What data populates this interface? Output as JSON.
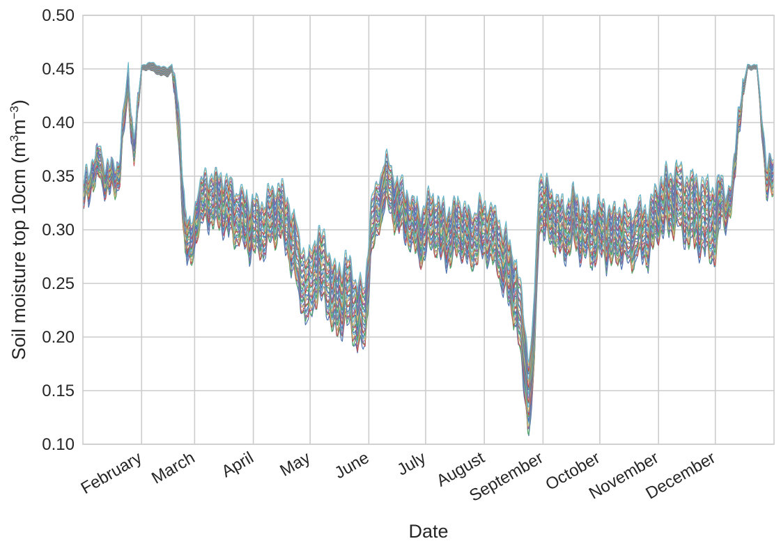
{
  "chart_data": {
    "type": "line",
    "xlabel": "Date",
    "ylabel_main": "Soil moisture top 10cm (m",
    "ylabel_sup1": "3",
    "ylabel_mid": "m",
    "ylabel_sup2": "−3",
    "ylabel_end": ")",
    "ylim": [
      0.1,
      0.5
    ],
    "xlim_day_of_year": [
      1,
      366
    ],
    "yticks": [
      0.1,
      0.15,
      0.2,
      0.25,
      0.3,
      0.35,
      0.4,
      0.45,
      0.5
    ],
    "ytick_labels": [
      "0.10",
      "0.15",
      "0.20",
      "0.25",
      "0.30",
      "0.35",
      "0.40",
      "0.45",
      "0.50"
    ],
    "xticks_day_of_year": [
      32,
      60,
      91,
      121,
      152,
      182,
      213,
      244,
      274,
      305,
      335
    ],
    "xtick_labels": [
      "February",
      "March",
      "April",
      "May",
      "June",
      "July",
      "August",
      "September",
      "October",
      "November",
      "December"
    ],
    "grid": true,
    "legend": "none",
    "series_colors": [
      "#4C72B0",
      "#55A868",
      "#C44E52",
      "#8172B2",
      "#CCB974",
      "#64B5CD"
    ],
    "ensemble": {
      "members": 30,
      "note_values": "ensemble envelope read from chart; x = day of year",
      "x": [
        1,
        6,
        10,
        14,
        20,
        25,
        28,
        32,
        38,
        42,
        46,
        48,
        50,
        52,
        55,
        58,
        62,
        68,
        75,
        82,
        88,
        95,
        100,
        105,
        110,
        115,
        120,
        125,
        130,
        135,
        140,
        145,
        150,
        153,
        157,
        160,
        165,
        170,
        175,
        180,
        185,
        190,
        195,
        200,
        205,
        210,
        215,
        220,
        225,
        230,
        233,
        236,
        238,
        240,
        242,
        245,
        250,
        255,
        260,
        265,
        270,
        275,
        280,
        285,
        290,
        295,
        300,
        305,
        310,
        315,
        320,
        325,
        330,
        335,
        338,
        341,
        344,
        347,
        352,
        357,
        362,
        366
      ],
      "center": [
        0.33,
        0.352,
        0.362,
        0.345,
        0.352,
        0.44,
        0.37,
        0.452,
        0.452,
        0.448,
        0.447,
        0.452,
        0.42,
        0.385,
        0.3,
        0.28,
        0.322,
        0.33,
        0.325,
        0.315,
        0.305,
        0.3,
        0.312,
        0.318,
        0.3,
        0.265,
        0.24,
        0.27,
        0.255,
        0.23,
        0.245,
        0.225,
        0.215,
        0.3,
        0.32,
        0.345,
        0.33,
        0.318,
        0.305,
        0.295,
        0.312,
        0.298,
        0.295,
        0.305,
        0.29,
        0.298,
        0.3,
        0.285,
        0.265,
        0.24,
        0.2,
        0.15,
        0.16,
        0.23,
        0.33,
        0.32,
        0.31,
        0.298,
        0.31,
        0.3,
        0.295,
        0.3,
        0.293,
        0.298,
        0.292,
        0.298,
        0.295,
        0.32,
        0.325,
        0.33,
        0.32,
        0.315,
        0.31,
        0.305,
        0.33,
        0.32,
        0.33,
        0.4,
        0.452,
        0.452,
        0.352,
        0.345
      ],
      "spread": [
        0.012,
        0.012,
        0.014,
        0.012,
        0.012,
        0.012,
        0.012,
        0.002,
        0.004,
        0.004,
        0.004,
        0.003,
        0.012,
        0.02,
        0.02,
        0.018,
        0.02,
        0.022,
        0.024,
        0.024,
        0.024,
        0.024,
        0.024,
        0.024,
        0.026,
        0.028,
        0.03,
        0.03,
        0.03,
        0.03,
        0.03,
        0.03,
        0.028,
        0.026,
        0.024,
        0.022,
        0.022,
        0.022,
        0.022,
        0.024,
        0.024,
        0.024,
        0.024,
        0.024,
        0.024,
        0.024,
        0.024,
        0.026,
        0.028,
        0.03,
        0.034,
        0.034,
        0.034,
        0.03,
        0.026,
        0.024,
        0.024,
        0.024,
        0.024,
        0.024,
        0.024,
        0.024,
        0.024,
        0.024,
        0.024,
        0.024,
        0.024,
        0.024,
        0.026,
        0.028,
        0.03,
        0.032,
        0.032,
        0.034,
        0.02,
        0.014,
        0.012,
        0.012,
        0.002,
        0.002,
        0.014,
        0.016
      ]
    }
  }
}
